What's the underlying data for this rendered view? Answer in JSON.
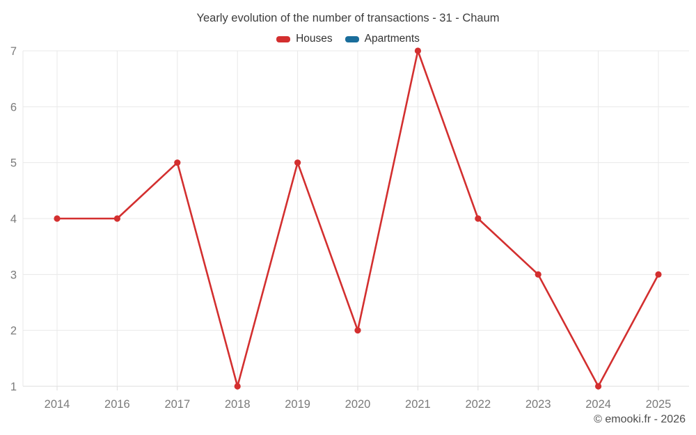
{
  "title": "Yearly evolution of the number of transactions - 31 - Chaum",
  "legend": [
    {
      "label": "Houses",
      "color": "#d32f2f"
    },
    {
      "label": "Apartments",
      "color": "#1a6d9b"
    }
  ],
  "watermark": "© emooki.fr - 2026",
  "chart_data": {
    "type": "line",
    "title": "Yearly evolution of the number of transactions - 31 - Chaum",
    "categories": [
      "2014",
      "2016",
      "2017",
      "2018",
      "2019",
      "2020",
      "2021",
      "2022",
      "2023",
      "2024",
      "2025"
    ],
    "series": [
      {
        "name": "Houses",
        "color": "#d32f2f",
        "values": [
          4,
          4,
          5,
          1,
          5,
          2,
          7,
          4,
          3,
          1,
          3
        ]
      },
      {
        "name": "Apartments",
        "color": "#1a6d9b",
        "values": []
      }
    ],
    "xlabel": "",
    "ylabel": "",
    "ylim": [
      1,
      7
    ],
    "yticks": [
      1,
      2,
      3,
      4,
      5,
      6,
      7
    ],
    "grid": true,
    "legend_position": "top",
    "marker": "circle"
  }
}
